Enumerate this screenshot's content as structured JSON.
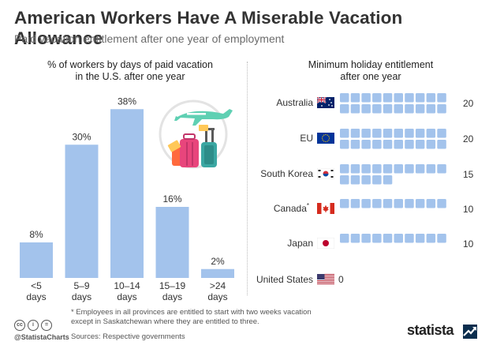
{
  "header": {
    "title": "American Workers Have A Miserable Vacation Allowance",
    "subtitle": "Paid vacation entitlement after one year of employment"
  },
  "left": {
    "title_line1": "% of workers by days of paid vacation",
    "title_line2": "in the U.S. after one year"
  },
  "right": {
    "title_line1": "Minimum holiday entitlement",
    "title_line2": "after one year"
  },
  "chart_data": [
    {
      "type": "bar",
      "title": "% of workers by days of paid vacation in the U.S. after one year",
      "categories": [
        [
          "<5",
          "days"
        ],
        [
          "5–9",
          "days"
        ],
        [
          "10–14",
          "days"
        ],
        [
          "15–19",
          "days"
        ],
        [
          ">24",
          "days"
        ]
      ],
      "values": [
        8,
        30,
        38,
        16,
        2
      ],
      "value_labels": [
        "8%",
        "30%",
        "38%",
        "16%",
        "2%"
      ],
      "ylim": [
        0,
        40
      ],
      "color": "#a3c3ec"
    },
    {
      "type": "bar",
      "title": "Minimum holiday entitlement after one year",
      "categories": [
        "Australia",
        "EU",
        "South Korea",
        "Canada*",
        "Japan",
        "United States"
      ],
      "values": [
        20,
        20,
        15,
        10,
        10,
        0
      ],
      "icons": [
        "flag-australia-icon",
        "flag-eu-icon",
        "flag-south-korea-icon",
        "flag-canada-icon",
        "flag-japan-icon",
        "flag-united-states-icon"
      ],
      "unit_icon": "day-square",
      "color": "#a3c3ec"
    }
  ],
  "footer": {
    "footnote": "* Employees in all provinces are entitled to start with two weeks vacation except in Saskatchewan where they are entitled to three.",
    "handle": "@StatistaCharts",
    "sources": "Sources: Respective governments",
    "brand": "statista"
  }
}
